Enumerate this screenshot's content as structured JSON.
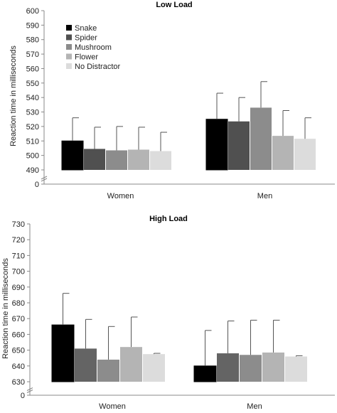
{
  "chart_data": [
    {
      "type": "bar",
      "title": "Low Load",
      "ylabel": "Reaction time in milliseconds",
      "xlabel": "",
      "categories": [
        "Women",
        "Men"
      ],
      "ylim": [
        490,
        600
      ],
      "y_axis_break": true,
      "y_ticks": [
        "490",
        "500",
        "510",
        "520",
        "530",
        "540",
        "550",
        "560",
        "570",
        "580",
        "590",
        "600"
      ],
      "y_zero_label": "0",
      "legend_position": "top-left",
      "series": [
        {
          "name": "Snake",
          "color": "#000000",
          "values": [
            510,
            525
          ],
          "errors": [
            16,
            18
          ]
        },
        {
          "name": "Spider",
          "color": "#505050",
          "values": [
            504.5,
            523.5
          ],
          "errors": [
            15,
            16.5
          ]
        },
        {
          "name": "Mushroom",
          "color": "#8c8c8c",
          "values": [
            503.5,
            533
          ],
          "errors": [
            16.5,
            18
          ]
        },
        {
          "name": "Flower",
          "color": "#b4b4b4",
          "values": [
            504,
            513.5
          ],
          "errors": [
            15.5,
            17.5
          ]
        },
        {
          "name": "No Distractor",
          "color": "#dcdcdc",
          "values": [
            503,
            511.5
          ],
          "errors": [
            13,
            14.5
          ]
        }
      ]
    },
    {
      "type": "bar",
      "title": "High Load",
      "ylabel": "Reaction time in milliseconds",
      "xlabel": "",
      "categories": [
        "Women",
        "Men"
      ],
      "ylim": [
        630,
        730
      ],
      "y_axis_break": true,
      "y_ticks": [
        "630",
        "640",
        "650",
        "660",
        "670",
        "680",
        "690",
        "700",
        "710",
        "720",
        "730"
      ],
      "y_zero_label": "0",
      "series": [
        {
          "name": "Snake",
          "color": "#000000",
          "values": [
            666,
            640
          ],
          "errors": [
            20,
            22.5
          ]
        },
        {
          "name": "Spider",
          "color": "#646464",
          "values": [
            651,
            648
          ],
          "errors": [
            18.5,
            20.5
          ]
        },
        {
          "name": "Mushroom",
          "color": "#8c8c8c",
          "values": [
            644,
            647
          ],
          "errors": [
            21,
            22
          ]
        },
        {
          "name": "Flower",
          "color": "#b4b4b4",
          "values": [
            652,
            648.5
          ],
          "errors": [
            19,
            20.5
          ]
        },
        {
          "name": "No Distractor",
          "color": "#dcdcdc",
          "values": [
            647.5,
            646
          ],
          "errors": [
            0.5,
            0.5
          ]
        }
      ]
    }
  ]
}
